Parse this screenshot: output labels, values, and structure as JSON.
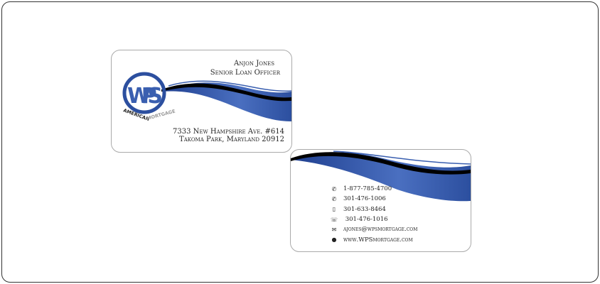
{
  "front": {
    "name": "Anjon Jones",
    "title": "Senior Loan Officer",
    "address_line1": "7333 New Hampshire Ave. #614",
    "address_line2": "Takoma Park, Maryland 20912",
    "logo": {
      "letters": "WPS",
      "word1": "AMERICAN",
      "word2": "MORTGAGE"
    }
  },
  "back": {
    "contacts": [
      {
        "icon": "phone-icon",
        "value": "1-877-785-4700"
      },
      {
        "icon": "phone-icon",
        "value": "301-476-1006"
      },
      {
        "icon": "mobile-phone-icon",
        "value": "301-633-8464"
      },
      {
        "icon": "fax-icon",
        "value": " 301-476-1016"
      },
      {
        "icon": "envelope-icon",
        "value": "ajones@wpsmortgage.com"
      },
      {
        "icon": "globe-icon",
        "value": "www.WPSmortgage.com"
      }
    ]
  },
  "colors": {
    "brand_blue": "#3a5fb0",
    "dark_blue": "#1f3f8f",
    "black": "#000000"
  }
}
